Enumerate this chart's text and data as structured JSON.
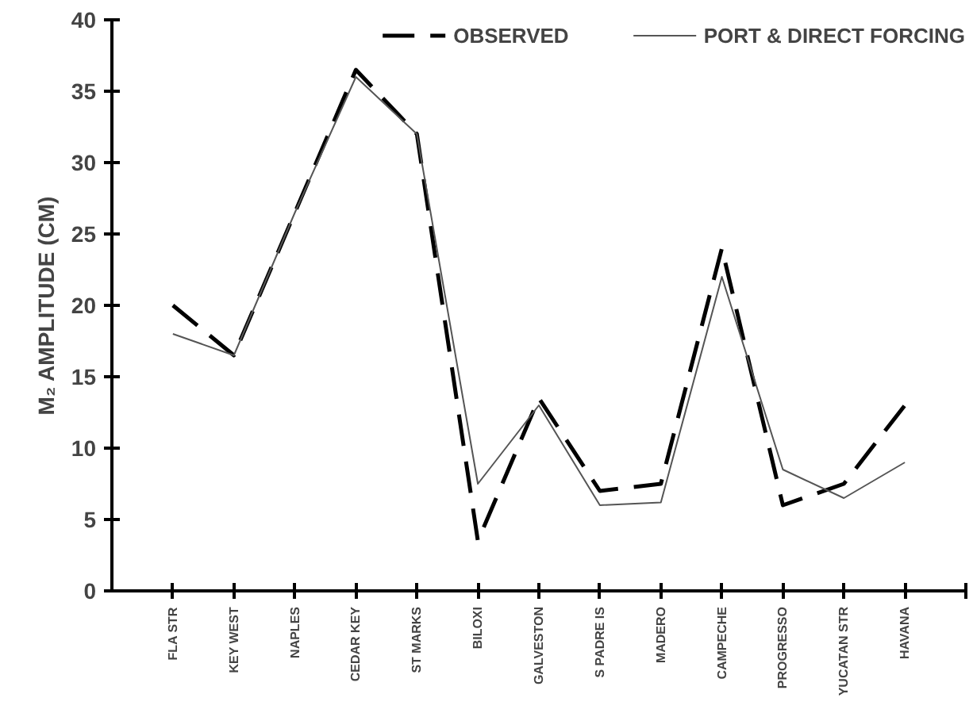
{
  "chart_data": {
    "type": "line",
    "ylabel": "M₂ AMPLITUDE (CM)",
    "categories": [
      "FLA STR",
      "KEY WEST",
      "NAPLES",
      "CEDAR KEY",
      "ST MARKS",
      "BILOXI",
      "GALVESTON",
      "S PADRE IS",
      "MADERO",
      "CAMPECHE",
      "PROGRESSO",
      "YUCATAN STR",
      "HAVANA"
    ],
    "series": [
      {
        "name": "OBSERVED",
        "color": "#000000",
        "line_style": "dashed",
        "values": [
          20,
          16.5,
          26.5,
          36.5,
          32,
          3.5,
          13.5,
          7,
          7.5,
          24,
          6,
          7.5,
          13
        ]
      },
      {
        "name": "PORT & DIRECT FORCING",
        "color": "#555555",
        "line_style": "solid",
        "values": [
          18,
          16.5,
          26.5,
          36,
          32,
          7.5,
          13,
          6,
          6.2,
          22,
          8.5,
          6.5,
          9
        ]
      }
    ],
    "ylim": [
      0,
      40
    ],
    "yticks": [
      0,
      5,
      10,
      15,
      20,
      25,
      30,
      35,
      40
    ],
    "grid": false,
    "legend": "top",
    "marker": "none"
  }
}
